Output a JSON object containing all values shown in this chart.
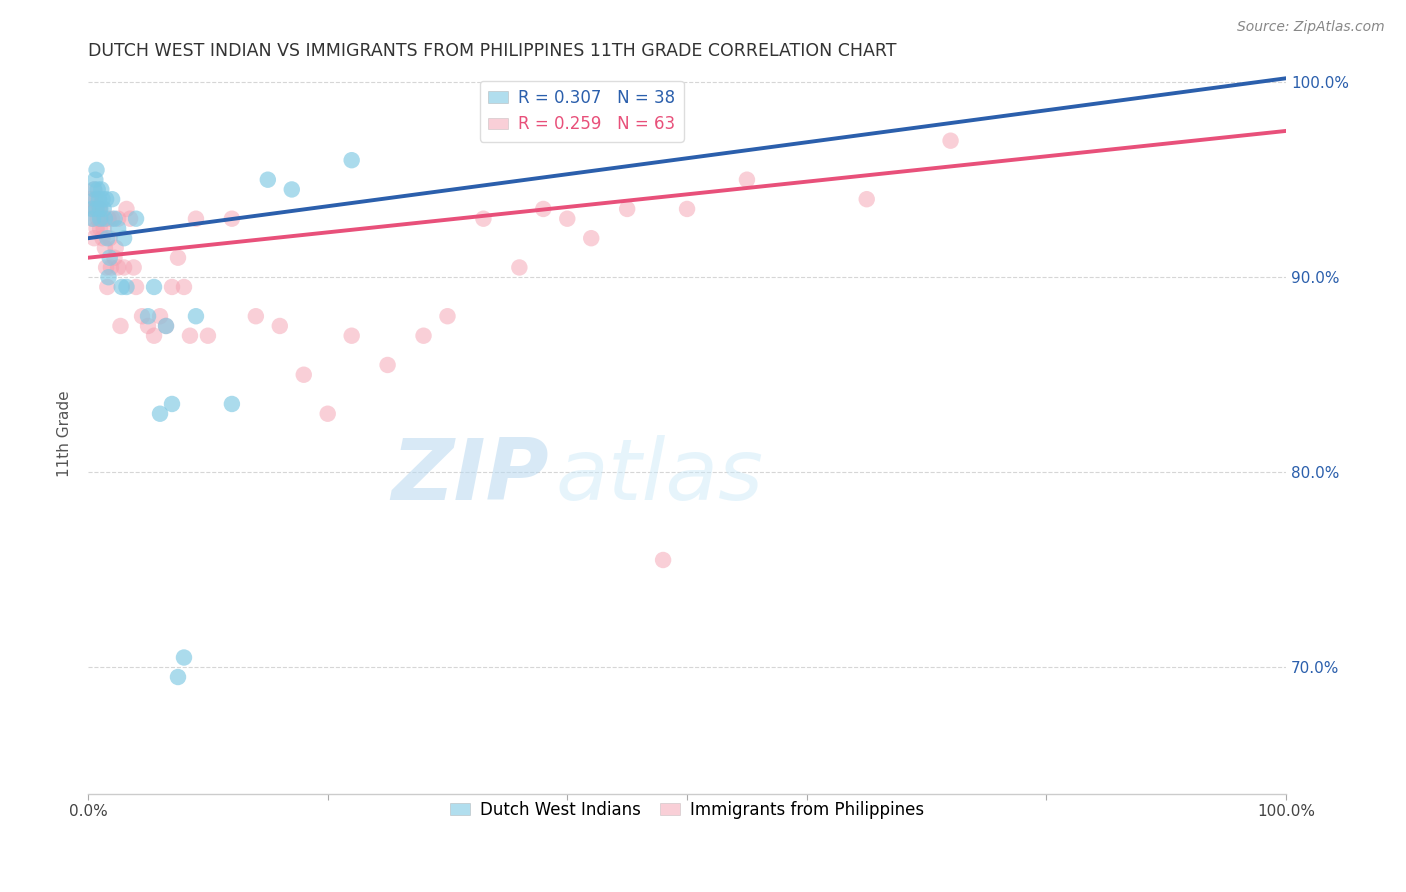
{
  "title": "DUTCH WEST INDIAN VS IMMIGRANTS FROM PHILIPPINES 11TH GRADE CORRELATION CHART",
  "source": "Source: ZipAtlas.com",
  "ylabel": "11th Grade",
  "xlim": [
    0.0,
    1.0
  ],
  "ylim": [
    0.635,
    1.005
  ],
  "yticks": [
    0.7,
    0.8,
    0.9,
    1.0
  ],
  "ytick_labels": [
    "70.0%",
    "80.0%",
    "90.0%",
    "100.0%"
  ],
  "blue_color": "#7ec8e3",
  "pink_color": "#f4a0b0",
  "blue_line_color": "#2b5fac",
  "pink_line_color": "#e8507a",
  "background_color": "#ffffff",
  "watermark_zip": "ZIP",
  "watermark_atlas": "atlas",
  "R_blue": 0.307,
  "N_blue": 38,
  "R_pink": 0.259,
  "N_pink": 63,
  "blue_line_x0": 0.0,
  "blue_line_y0": 0.92,
  "blue_line_x1": 1.0,
  "blue_line_y1": 1.002,
  "pink_line_x0": 0.0,
  "pink_line_y0": 0.91,
  "pink_line_x1": 1.0,
  "pink_line_y1": 0.975,
  "blue_x": [
    0.003,
    0.004,
    0.005,
    0.006,
    0.006,
    0.007,
    0.007,
    0.008,
    0.009,
    0.01,
    0.01,
    0.011,
    0.012,
    0.013,
    0.014,
    0.015,
    0.016,
    0.017,
    0.018,
    0.02,
    0.022,
    0.025,
    0.028,
    0.03,
    0.032,
    0.04,
    0.05,
    0.055,
    0.06,
    0.065,
    0.07,
    0.075,
    0.08,
    0.09,
    0.12,
    0.15,
    0.17,
    0.22
  ],
  "blue_y": [
    0.935,
    0.93,
    0.945,
    0.94,
    0.95,
    0.935,
    0.955,
    0.945,
    0.94,
    0.935,
    0.93,
    0.945,
    0.94,
    0.935,
    0.93,
    0.94,
    0.92,
    0.9,
    0.91,
    0.94,
    0.93,
    0.925,
    0.895,
    0.92,
    0.895,
    0.93,
    0.88,
    0.895,
    0.83,
    0.875,
    0.835,
    0.695,
    0.705,
    0.88,
    0.835,
    0.95,
    0.945,
    0.96
  ],
  "pink_x": [
    0.002,
    0.003,
    0.004,
    0.005,
    0.005,
    0.006,
    0.007,
    0.007,
    0.008,
    0.009,
    0.01,
    0.01,
    0.011,
    0.012,
    0.013,
    0.014,
    0.015,
    0.016,
    0.017,
    0.018,
    0.019,
    0.02,
    0.022,
    0.023,
    0.025,
    0.025,
    0.027,
    0.03,
    0.032,
    0.035,
    0.038,
    0.04,
    0.045,
    0.05,
    0.055,
    0.06,
    0.065,
    0.07,
    0.075,
    0.08,
    0.085,
    0.09,
    0.1,
    0.12,
    0.14,
    0.16,
    0.18,
    0.2,
    0.22,
    0.25,
    0.28,
    0.3,
    0.33,
    0.36,
    0.38,
    0.4,
    0.42,
    0.45,
    0.48,
    0.5,
    0.55,
    0.65,
    0.72
  ],
  "pink_y": [
    0.94,
    0.93,
    0.935,
    0.945,
    0.92,
    0.935,
    0.94,
    0.925,
    0.93,
    0.935,
    0.925,
    0.935,
    0.93,
    0.92,
    0.925,
    0.915,
    0.905,
    0.895,
    0.93,
    0.92,
    0.905,
    0.93,
    0.91,
    0.915,
    0.905,
    0.93,
    0.875,
    0.905,
    0.935,
    0.93,
    0.905,
    0.895,
    0.88,
    0.875,
    0.87,
    0.88,
    0.875,
    0.895,
    0.91,
    0.895,
    0.87,
    0.93,
    0.87,
    0.93,
    0.88,
    0.875,
    0.85,
    0.83,
    0.87,
    0.855,
    0.87,
    0.88,
    0.93,
    0.905,
    0.935,
    0.93,
    0.92,
    0.935,
    0.755,
    0.935,
    0.95,
    0.94,
    0.97
  ]
}
